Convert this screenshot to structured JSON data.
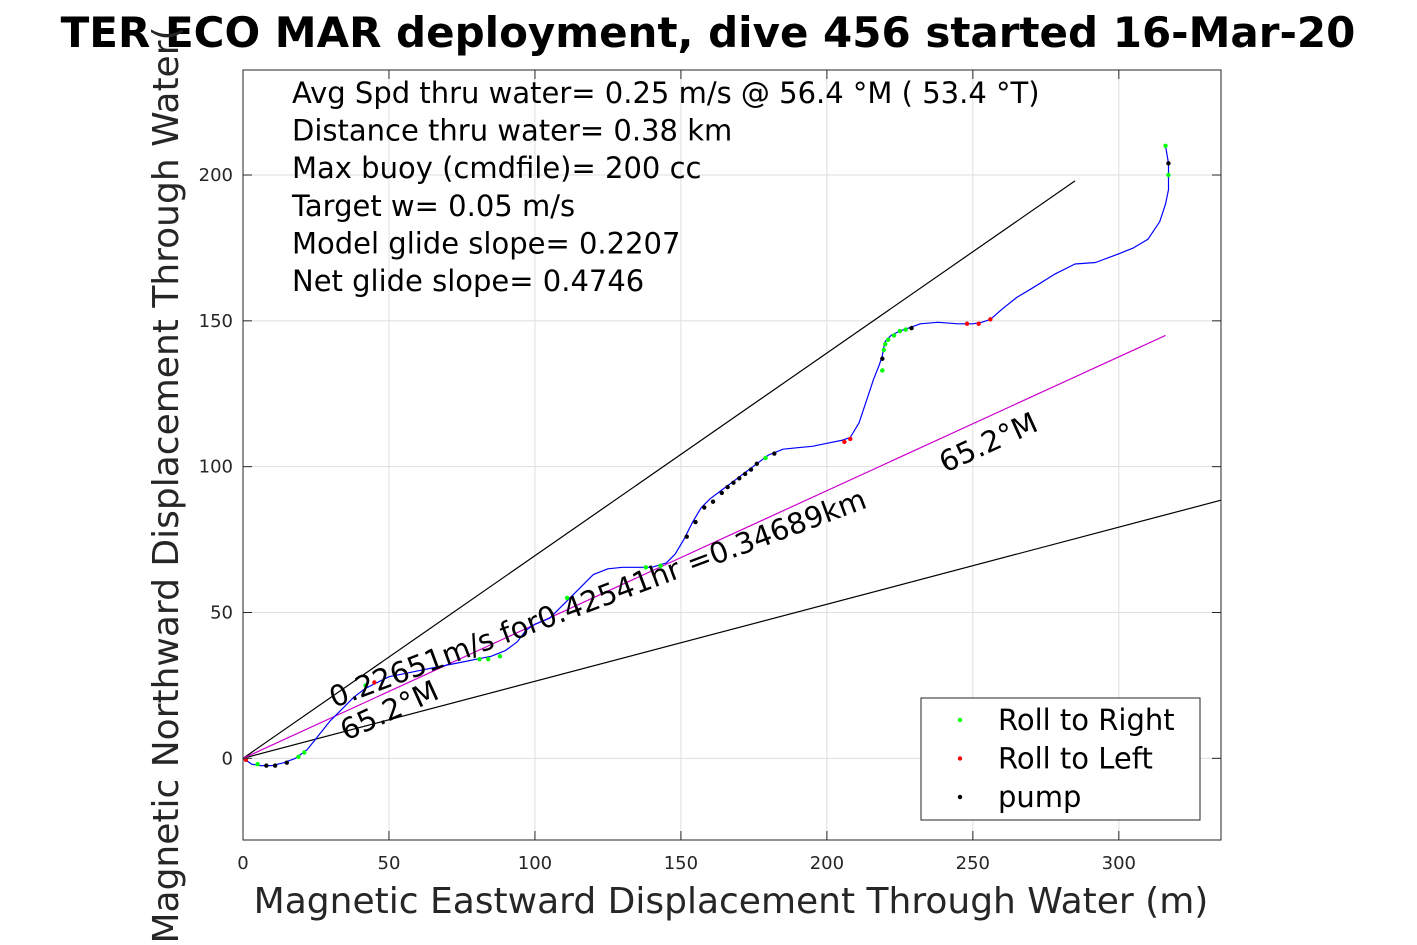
{
  "chart_data": {
    "type": "line",
    "title": "TER ECO MAR deployment, dive 456 started 16-Mar-20",
    "xlabel": "Magnetic Eastward Displacement Through Water (m)",
    "ylabel": "Magnetic Northward Displacement Through Water(",
    "xlim": [
      0,
      335
    ],
    "ylim": [
      -28,
      236
    ],
    "xticks": [
      0,
      50,
      100,
      150,
      200,
      250,
      300
    ],
    "yticks": [
      0,
      50,
      100,
      150,
      200
    ],
    "grid": true,
    "legend_position": "bottom-right",
    "stats": [
      "Avg Spd thru water=  0.25 m/s @  56.4 °M ( 53.4 °T)",
      "Distance thru water=  0.38 km",
      "Max buoy (cmdfile)= 200 cc",
      "Target w= 0.05 m/s",
      "Model glide slope= 0.2207",
      "Net glide slope= 0.4746"
    ],
    "annotations": {
      "segment_text": "0.22651m/s for0.42541hr =0.34689km",
      "heading_lower": "65.2°M",
      "heading_upper": "65.2°M"
    },
    "guide_lines": [
      {
        "name": "upper",
        "x": [
          0,
          285
        ],
        "y": [
          0,
          198
        ],
        "color": "#000000"
      },
      {
        "name": "lower",
        "x": [
          0,
          335
        ],
        "y": [
          0,
          88.5
        ],
        "color": "#000000"
      },
      {
        "name": "heading",
        "x": [
          0,
          316
        ],
        "y": [
          0,
          145
        ],
        "color": "#cc00cc"
      }
    ],
    "track": {
      "name": "track",
      "color": "#0000ff",
      "x": [
        0,
        3,
        6,
        10,
        14,
        18,
        22,
        26,
        30,
        34,
        38,
        42,
        46,
        50,
        55,
        60,
        65,
        70,
        75,
        80,
        85,
        90,
        94,
        97,
        100,
        105,
        110,
        115,
        120,
        125,
        130,
        135,
        140,
        145,
        148,
        151,
        154,
        157,
        160,
        164,
        168,
        172,
        176,
        180,
        185,
        190,
        195,
        200,
        205,
        208,
        211,
        214,
        216,
        218,
        219,
        219.5,
        220,
        222,
        225,
        228,
        232,
        238,
        245,
        250,
        253,
        256,
        260,
        265,
        270,
        278,
        285,
        292,
        300,
        305,
        310,
        314,
        316,
        317,
        317,
        316
      ],
      "y": [
        0,
        -2,
        -2.5,
        -2.5,
        -1.5,
        0,
        3,
        8,
        13,
        17,
        21,
        24,
        26,
        28,
        29,
        30,
        31,
        32,
        33,
        34,
        35,
        37,
        40,
        44,
        46,
        48,
        53,
        58,
        63,
        65,
        65.5,
        65.5,
        65.5,
        67,
        70,
        75,
        81,
        86,
        89,
        92,
        95,
        98,
        101,
        104,
        106,
        106.5,
        107,
        108,
        109,
        110,
        115,
        124,
        130,
        135,
        138,
        141,
        143,
        145,
        146.5,
        147.5,
        149,
        149.5,
        149,
        149,
        149.5,
        150.5,
        154,
        158,
        161,
        166,
        169.5,
        170,
        173,
        175,
        178,
        184,
        190,
        195,
        204,
        210
      ],
      "markers": [
        {
          "x": 1,
          "y": -0.5,
          "type": "roll_left"
        },
        {
          "x": 5,
          "y": -2,
          "type": "roll_right"
        },
        {
          "x": 8,
          "y": -2.5,
          "type": "pump"
        },
        {
          "x": 11,
          "y": -2.5,
          "type": "pump"
        },
        {
          "x": 15,
          "y": -1.5,
          "type": "pump"
        },
        {
          "x": 19,
          "y": 0.5,
          "type": "roll_right"
        },
        {
          "x": 21,
          "y": 2,
          "type": "roll_right"
        },
        {
          "x": 42,
          "y": 25,
          "type": "roll_right"
        },
        {
          "x": 45,
          "y": 26,
          "type": "roll_left"
        },
        {
          "x": 81,
          "y": 34,
          "type": "roll_right"
        },
        {
          "x": 84,
          "y": 34,
          "type": "roll_right"
        },
        {
          "x": 88,
          "y": 35,
          "type": "roll_right"
        },
        {
          "x": 111,
          "y": 55,
          "type": "roll_right"
        },
        {
          "x": 138,
          "y": 65.5,
          "type": "roll_right"
        },
        {
          "x": 143,
          "y": 66,
          "type": "roll_right"
        },
        {
          "x": 152,
          "y": 76,
          "type": "pump"
        },
        {
          "x": 155,
          "y": 81,
          "type": "pump"
        },
        {
          "x": 158,
          "y": 86,
          "type": "pump"
        },
        {
          "x": 161,
          "y": 88,
          "type": "pump"
        },
        {
          "x": 164,
          "y": 91,
          "type": "pump"
        },
        {
          "x": 166,
          "y": 93,
          "type": "pump"
        },
        {
          "x": 168,
          "y": 94.5,
          "type": "pump"
        },
        {
          "x": 170,
          "y": 96,
          "type": "pump"
        },
        {
          "x": 172,
          "y": 97.5,
          "type": "pump"
        },
        {
          "x": 174,
          "y": 99,
          "type": "pump"
        },
        {
          "x": 176,
          "y": 101,
          "type": "pump"
        },
        {
          "x": 179,
          "y": 103,
          "type": "roll_right"
        },
        {
          "x": 182,
          "y": 104.5,
          "type": "pump"
        },
        {
          "x": 206,
          "y": 108.5,
          "type": "roll_left"
        },
        {
          "x": 208,
          "y": 109.5,
          "type": "roll_left"
        },
        {
          "x": 219,
          "y": 133,
          "type": "roll_right"
        },
        {
          "x": 219,
          "y": 137,
          "type": "pump"
        },
        {
          "x": 219.5,
          "y": 140,
          "type": "roll_right"
        },
        {
          "x": 220,
          "y": 142,
          "type": "roll_right"
        },
        {
          "x": 221,
          "y": 143.5,
          "type": "roll_right"
        },
        {
          "x": 223,
          "y": 145,
          "type": "roll_right"
        },
        {
          "x": 225,
          "y": 146.5,
          "type": "roll_right"
        },
        {
          "x": 227,
          "y": 147,
          "type": "roll_right"
        },
        {
          "x": 229,
          "y": 147.5,
          "type": "pump"
        },
        {
          "x": 248,
          "y": 149,
          "type": "roll_left"
        },
        {
          "x": 252,
          "y": 149,
          "type": "roll_left"
        },
        {
          "x": 256,
          "y": 150.5,
          "type": "roll_left"
        },
        {
          "x": 317,
          "y": 200,
          "type": "roll_right"
        },
        {
          "x": 317,
          "y": 204,
          "type": "pump"
        },
        {
          "x": 316,
          "y": 210,
          "type": "roll_right"
        }
      ]
    },
    "legend": [
      {
        "label": "Roll to Right",
        "color": "#00ff00",
        "key": "roll_right"
      },
      {
        "label": "Roll to Left",
        "color": "#ff0000",
        "key": "roll_left"
      },
      {
        "label": "pump",
        "color": "#000000",
        "key": "pump"
      }
    ],
    "colors": {
      "grid": "#dedede",
      "axis": "#262626",
      "track": "#0000ff",
      "heading": "#cc00cc"
    }
  }
}
